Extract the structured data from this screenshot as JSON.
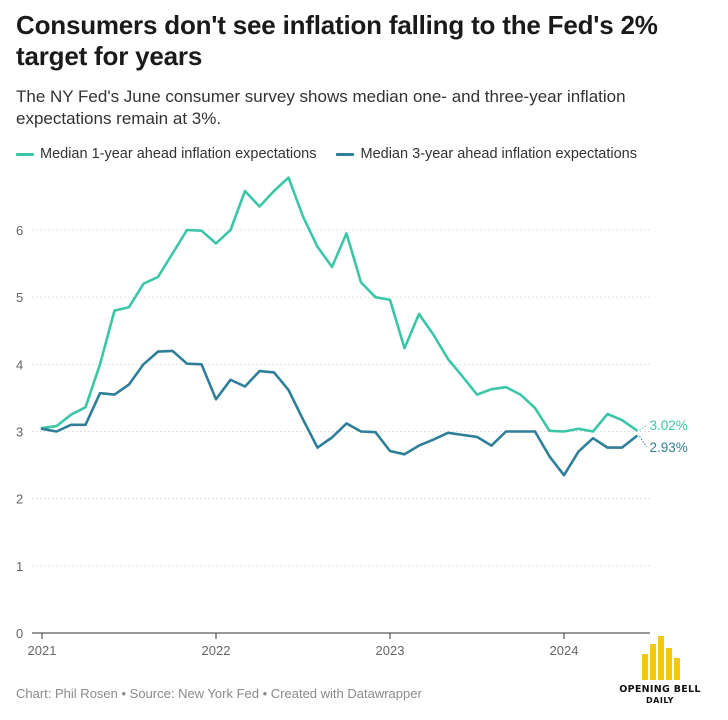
{
  "header": {
    "title": "Consumers don't see inflation falling to the Fed's 2% target for years",
    "subtitle": "The NY Fed's June consumer survey shows median one- and three-year inflation expectations remain at 3%."
  },
  "footer": {
    "credit": "Chart: Phil Rosen • Source: New York Fed • Created with Datawrapper"
  },
  "logo": {
    "line1": "OPENING BELL",
    "line2": "DAILY",
    "color": "#f5c518"
  },
  "chart_data": {
    "type": "line",
    "title": "",
    "xlabel": "",
    "ylabel": "",
    "x_ticks": [
      "2021",
      "2022",
      "2023",
      "2024"
    ],
    "y_ticks": [
      0,
      1,
      2,
      3,
      4,
      5,
      6
    ],
    "ylim": [
      0,
      7
    ],
    "x_range": [
      "2021-01",
      "2024-06"
    ],
    "grid": "horizontal",
    "legend_position": "top-left",
    "x": [
      "2021-01",
      "2021-02",
      "2021-03",
      "2021-04",
      "2021-05",
      "2021-06",
      "2021-07",
      "2021-08",
      "2021-09",
      "2021-10",
      "2021-11",
      "2021-12",
      "2022-01",
      "2022-02",
      "2022-03",
      "2022-04",
      "2022-05",
      "2022-06",
      "2022-07",
      "2022-08",
      "2022-09",
      "2022-10",
      "2022-11",
      "2022-12",
      "2023-01",
      "2023-02",
      "2023-03",
      "2023-04",
      "2023-05",
      "2023-06",
      "2023-07",
      "2023-08",
      "2023-09",
      "2023-10",
      "2023-11",
      "2023-12",
      "2024-01",
      "2024-02",
      "2024-03",
      "2024-04",
      "2024-05",
      "2024-06"
    ],
    "series": [
      {
        "name": "Median 1-year ahead inflation expectations",
        "color": "#3cc6a8",
        "end_label": "3.02%",
        "values": [
          3.05,
          3.08,
          3.25,
          3.36,
          4.0,
          4.8,
          4.85,
          5.2,
          5.3,
          5.65,
          6.0,
          5.99,
          5.8,
          6.0,
          6.58,
          6.35,
          6.58,
          6.78,
          6.2,
          5.75,
          5.45,
          5.95,
          5.22,
          5.0,
          4.96,
          4.24,
          4.75,
          4.44,
          4.08,
          3.82,
          3.55,
          3.63,
          3.66,
          3.55,
          3.35,
          3.01,
          3.0,
          3.04,
          3.0,
          3.26,
          3.17,
          3.02
        ]
      },
      {
        "name": "Median 3-year ahead inflation expectations",
        "color": "#2f7f98",
        "end_label": "2.93%",
        "values": [
          3.04,
          3.0,
          3.1,
          3.1,
          3.57,
          3.55,
          3.7,
          4.0,
          4.19,
          4.2,
          4.01,
          4.0,
          3.48,
          3.77,
          3.67,
          3.9,
          3.88,
          3.62,
          3.18,
          2.76,
          2.91,
          3.12,
          3.0,
          2.99,
          2.71,
          2.66,
          2.79,
          2.88,
          2.98,
          2.95,
          2.92,
          2.79,
          3.0,
          3.0,
          3.0,
          2.63,
          2.35,
          2.7,
          2.9,
          2.76,
          2.76,
          2.93
        ]
      }
    ]
  }
}
